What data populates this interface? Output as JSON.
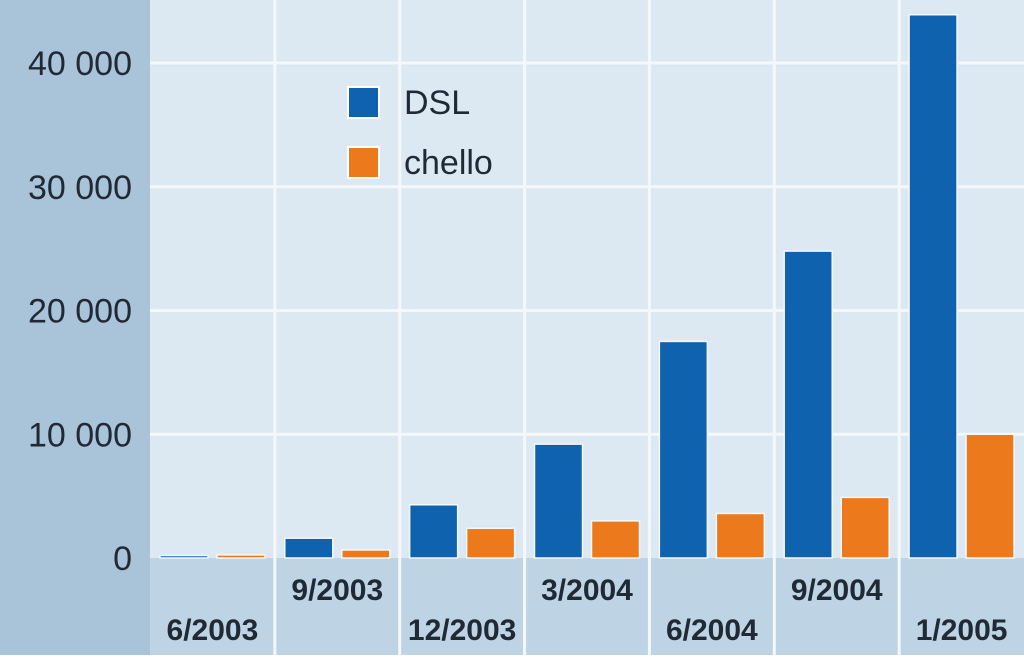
{
  "chart_data": {
    "type": "bar",
    "title": "",
    "xlabel": "",
    "ylabel": "",
    "categories": [
      "6/2003",
      "9/2003",
      "12/2003",
      "3/2004",
      "6/2004",
      "9/2004",
      "1/2005"
    ],
    "series": [
      {
        "name": "DSL",
        "color": "#0f62ad",
        "values": [
          200,
          1600,
          4300,
          9200,
          17500,
          24800,
          43900
        ]
      },
      {
        "name": "chello",
        "color": "#ec7a1d",
        "values": [
          250,
          650,
          2400,
          3000,
          3600,
          4900,
          10000
        ]
      }
    ],
    "y_ticks": [
      {
        "value": 0,
        "label": "0"
      },
      {
        "value": 10000,
        "label": "10 000"
      },
      {
        "value": 20000,
        "label": "20 000"
      },
      {
        "value": 30000,
        "label": "30 000"
      },
      {
        "value": 40000,
        "label": "40 000"
      }
    ],
    "ylim": [
      0,
      44000
    ],
    "grid": true,
    "legend_position": "top-left",
    "colors": {
      "axis_panel": "#a9c3d8",
      "plot_background": "#dce9f3",
      "gridline": "#f4f8fb",
      "category_band": "#bed3e3"
    }
  }
}
